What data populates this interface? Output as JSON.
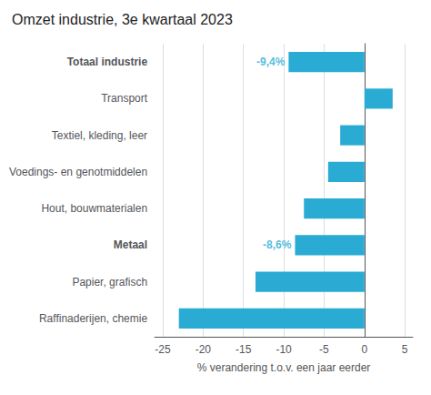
{
  "chart_data": {
    "type": "bar",
    "orientation": "horizontal",
    "title": "Omzet industrie, 3e kwartaal 2023",
    "categories": [
      "Raffinaderijen, chemie",
      "Papier, grafisch",
      "Metaal",
      "Hout, bouwmaterialen",
      "Voedings- en genotmiddelen",
      "Textiel, kleding, leer",
      "Transport",
      "Totaal industrie"
    ],
    "values": [
      -23.0,
      -13.5,
      -8.6,
      -7.5,
      -4.5,
      -3.0,
      3.5,
      -9.4
    ],
    "color": "#29ABD4",
    "xlabel": "% verandering t.o.v. een jaar eerder",
    "xlim": [
      -26,
      6
    ],
    "xticks": [
      -25,
      -20,
      -15,
      -10,
      -5,
      0,
      5
    ],
    "grid": true,
    "annotations": [
      {
        "category": "Totaal industrie",
        "value": -9.4,
        "text": "-9,4%"
      },
      {
        "category": "Metaal",
        "value": -8.6,
        "text": "-8,6%"
      }
    ]
  }
}
